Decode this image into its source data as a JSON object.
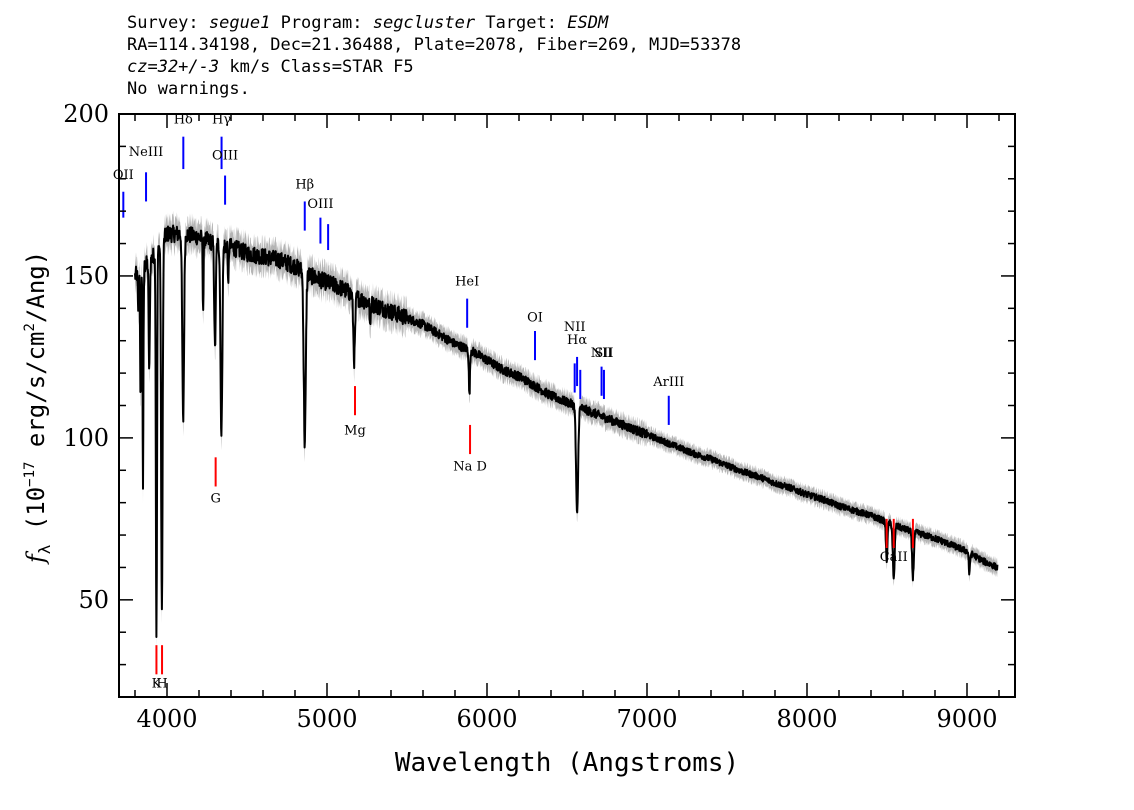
{
  "header": {
    "line1": {
      "survey_label": "Survey:",
      "survey": "segue1",
      "program_label": "Program:",
      "program": "segcluster",
      "target_label": "Target:",
      "target": "ESDM"
    },
    "line2": "RA=114.34198, Dec=21.36488, Plate=2078, Fiber=269, MJD=53378",
    "line3": {
      "cz": "cz=32+/-3",
      "rest": "km/s Class=STAR F5"
    },
    "line4": "No warnings."
  },
  "chart_data": {
    "type": "line",
    "xlabel": "Wavelength (Angstroms)",
    "ylabel": "fλ (10⁻¹⁷ erg/s/cm²/Ang)",
    "ylabel_parts": {
      "f": "f",
      "lambda": "λ",
      "open": " (10",
      "exp1": "−17",
      "mid": " erg/s/cm",
      "exp2": "2",
      "close": "/Ang)"
    },
    "xlim": [
      3700,
      9300
    ],
    "ylim": [
      20,
      200
    ],
    "xticks": [
      4000,
      5000,
      6000,
      7000,
      8000,
      9000
    ],
    "yticks": [
      50,
      100,
      150,
      200
    ],
    "colors": {
      "spectrum": "#000000",
      "error": "#b4b4b4",
      "emission": "#0000ff",
      "absorption": "#ff0000"
    },
    "continuum": [
      [
        3800,
        150
      ],
      [
        3900,
        155
      ],
      [
        4000,
        163
      ],
      [
        4100,
        163
      ],
      [
        4200,
        162
      ],
      [
        4300,
        160
      ],
      [
        4400,
        159
      ],
      [
        4500,
        157
      ],
      [
        4600,
        156
      ],
      [
        4700,
        155
      ],
      [
        4800,
        153
      ],
      [
        4900,
        150
      ],
      [
        5000,
        148
      ],
      [
        5100,
        146
      ],
      [
        5200,
        143
      ],
      [
        5300,
        141
      ],
      [
        5400,
        139
      ],
      [
        5500,
        137
      ],
      [
        5600,
        135
      ],
      [
        5700,
        132
      ],
      [
        5800,
        129
      ],
      [
        5900,
        127
      ],
      [
        6000,
        124
      ],
      [
        6100,
        121
      ],
      [
        6200,
        119
      ],
      [
        6300,
        116
      ],
      [
        6400,
        113
      ],
      [
        6500,
        111
      ],
      [
        6600,
        109
      ],
      [
        6700,
        107
      ],
      [
        6800,
        105
      ],
      [
        6900,
        103
      ],
      [
        7000,
        101
      ],
      [
        7100,
        99
      ],
      [
        7200,
        97
      ],
      [
        7300,
        95
      ],
      [
        7400,
        93.5
      ],
      [
        7500,
        91.5
      ],
      [
        7600,
        89.5
      ],
      [
        7700,
        88
      ],
      [
        7800,
        86
      ],
      [
        7900,
        84.5
      ],
      [
        8000,
        82.5
      ],
      [
        8100,
        81
      ],
      [
        8200,
        79
      ],
      [
        8300,
        77.5
      ],
      [
        8400,
        76
      ],
      [
        8500,
        74
      ],
      [
        8600,
        72
      ],
      [
        8700,
        70.5
      ],
      [
        8800,
        69
      ],
      [
        8900,
        67
      ],
      [
        9000,
        65
      ],
      [
        9100,
        62
      ],
      [
        9190,
        60
      ]
    ],
    "absorption_dips": [
      {
        "x": 3820,
        "y": 138,
        "w": 6
      },
      {
        "x": 3835,
        "y": 110,
        "w": 6
      },
      {
        "x": 3850,
        "y": 85,
        "w": 6
      },
      {
        "x": 3889,
        "y": 120,
        "w": 8
      },
      {
        "x": 3934,
        "y": 40,
        "w": 8
      },
      {
        "x": 3968,
        "y": 45,
        "w": 10
      },
      {
        "x": 4101,
        "y": 105,
        "w": 12
      },
      {
        "x": 4226,
        "y": 140,
        "w": 6
      },
      {
        "x": 4300,
        "y": 127,
        "w": 10
      },
      {
        "x": 4340,
        "y": 100,
        "w": 12
      },
      {
        "x": 4383,
        "y": 145,
        "w": 5
      },
      {
        "x": 4861,
        "y": 98,
        "w": 14
      },
      {
        "x": 5170,
        "y": 124,
        "w": 12
      },
      {
        "x": 5270,
        "y": 133,
        "w": 6
      },
      {
        "x": 5890,
        "y": 113,
        "w": 8
      },
      {
        "x": 6563,
        "y": 76,
        "w": 14
      },
      {
        "x": 8498,
        "y": 62,
        "w": 10
      },
      {
        "x": 8542,
        "y": 56,
        "w": 12
      },
      {
        "x": 8662,
        "y": 57,
        "w": 12
      },
      {
        "x": 9015,
        "y": 58,
        "w": 8
      }
    ],
    "emission_lines": [
      {
        "label": "OII",
        "x": 3727,
        "line_top": 176,
        "line_bottom": 168,
        "label_y": 180
      },
      {
        "label": "NeIII",
        "x": 3869,
        "line_top": 182,
        "line_bottom": 173,
        "label_y": 187
      },
      {
        "label": "Hδ",
        "x": 4102,
        "line_top": 193,
        "line_bottom": 183,
        "label_y": 197
      },
      {
        "label": "Hγ",
        "x": 4341,
        "line_top": 193,
        "line_bottom": 183,
        "label_y": 197
      },
      {
        "label": "OIII",
        "x": 4363,
        "line_top": 181,
        "line_bottom": 172,
        "label_y": 186
      },
      {
        "label": "Hβ",
        "x": 4861,
        "line_top": 173,
        "line_bottom": 164,
        "label_y": 177
      },
      {
        "label": "OIII",
        "x": 4959,
        "line_top": 168,
        "line_bottom": 160,
        "label_y": 171
      },
      {
        "label": "",
        "x": 5007,
        "line_top": 166,
        "line_bottom": 158,
        "label_y": 0
      },
      {
        "label": "HeI",
        "x": 5876,
        "line_top": 143,
        "line_bottom": 134,
        "label_y": 147
      },
      {
        "label": "OI",
        "x": 6300,
        "line_top": 133,
        "line_bottom": 124,
        "label_y": 136
      },
      {
        "label": "NII",
        "x": 6548,
        "line_top": 123,
        "line_bottom": 114,
        "label_y": 133
      },
      {
        "label": "Hα",
        "x": 6563,
        "line_top": 125,
        "line_bottom": 116,
        "label_y": 129
      },
      {
        "label": "",
        "x": 6583,
        "line_top": 121,
        "line_bottom": 112,
        "label_y": 0
      },
      {
        "label": "NII",
        "x": 6716,
        "line_top": 122,
        "line_bottom": 113,
        "label_y": 125
      },
      {
        "label": "SII",
        "x": 6731,
        "line_top": 121,
        "line_bottom": 112,
        "label_y": 125
      },
      {
        "label": "ArIII",
        "x": 7136,
        "line_top": 113,
        "line_bottom": 104,
        "label_y": 116
      }
    ],
    "absorption_lines": [
      {
        "label": "K",
        "x": 3934,
        "line_top": 36,
        "line_bottom": 27,
        "label_y": 23
      },
      {
        "label": "H",
        "x": 3969,
        "line_top": 36,
        "line_bottom": 27,
        "label_y": 23
      },
      {
        "label": "G",
        "x": 4304,
        "line_top": 94,
        "line_bottom": 85,
        "label_y": 80
      },
      {
        "label": "Mg",
        "x": 5175,
        "line_top": 116,
        "line_bottom": 107,
        "label_y": 101
      },
      {
        "label": "Na D",
        "x": 5894,
        "line_top": 104,
        "line_bottom": 95,
        "label_y": 90
      },
      {
        "label": "",
        "x": 8498,
        "line_top": 75,
        "line_bottom": 66,
        "label_y": 0
      },
      {
        "label": "CaII",
        "x": 8542,
        "line_top": 75,
        "line_bottom": 66,
        "label_y": 62
      },
      {
        "label": "",
        "x": 8662,
        "line_top": 75,
        "line_bottom": 66,
        "label_y": 0
      }
    ]
  }
}
